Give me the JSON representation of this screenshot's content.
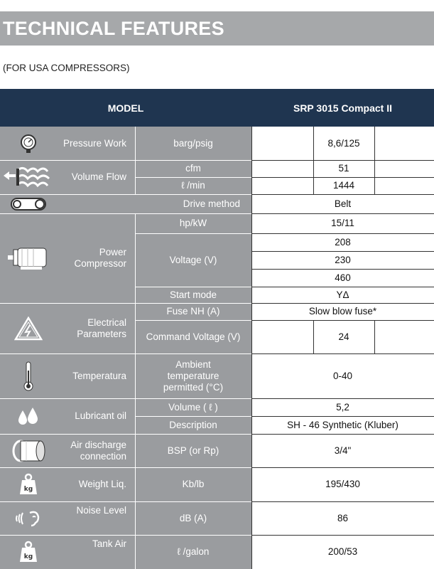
{
  "header": {
    "title": "TECHNICAL FEATURES",
    "subtitle": "(FOR USA COMPRESSORS)"
  },
  "table": {
    "model_label": "MODEL",
    "model_name": "SRP 3015 Compact II",
    "rows": {
      "pressure": {
        "category": "Pressure Work",
        "unit": "barg/psig",
        "value": "8,6/125"
      },
      "volume": {
        "category": "Volume Flow",
        "unit1": "cfm",
        "value1": "51",
        "unit2": "ℓ /min",
        "value2": "1444"
      },
      "drive": {
        "label": "Drive method",
        "value": "Belt"
      },
      "power": {
        "category": "Power Compressor",
        "unit_hp": "hp/kW",
        "value_hp": "15/11",
        "unit_voltage": "Voltage (V)",
        "voltages": [
          "208",
          "230",
          "460"
        ],
        "unit_start": "Start mode",
        "value_start": "YΔ"
      },
      "electrical": {
        "category": "Electrical Parameters",
        "unit_fuse": "Fuse NH (A)",
        "value_fuse": "Slow blow fuse*",
        "unit_cmd": "Command Voltage (V)",
        "value_cmd": "24"
      },
      "temperature": {
        "category": "Temperatura",
        "unit": "Ambient temperature permitted (°C)",
        "value": "0-40"
      },
      "lubricant": {
        "category": "Lubricant oil",
        "unit_volume": "Volume ( ℓ )",
        "value_volume": "5,2",
        "unit_desc": "Description",
        "value_desc": "SH - 46 Synthetic (Kluber)"
      },
      "air_discharge": {
        "category": "Air discharge connection",
        "unit": "BSP (or Rp)",
        "value": "3/4\""
      },
      "weight": {
        "category": "Weight Liq.",
        "unit": "Kb/lb",
        "value": "195/430"
      },
      "noise": {
        "category": "Noise Level",
        "unit": "dB (A)",
        "value": "86"
      },
      "tank": {
        "category": "Tank Air",
        "unit": "ℓ /galon",
        "value": "200/53"
      }
    }
  },
  "icons": {
    "pressure": "pressure-gauge-icon",
    "volume": "air-flow-icon",
    "drive": "belt-drive-icon",
    "power": "motor-icon",
    "electrical": "electrical-warning-icon",
    "temperature": "thermometer-icon",
    "lubricant": "oil-drops-icon",
    "air_discharge": "pipe-connection-icon",
    "weight": "weight-icon",
    "noise": "noise-level-icon",
    "tank": "tank-weight-icon"
  },
  "colors": {
    "banner": "#a6a8aa",
    "header_dark": "#1f3550",
    "cell_gray": "#9a9c9f"
  }
}
